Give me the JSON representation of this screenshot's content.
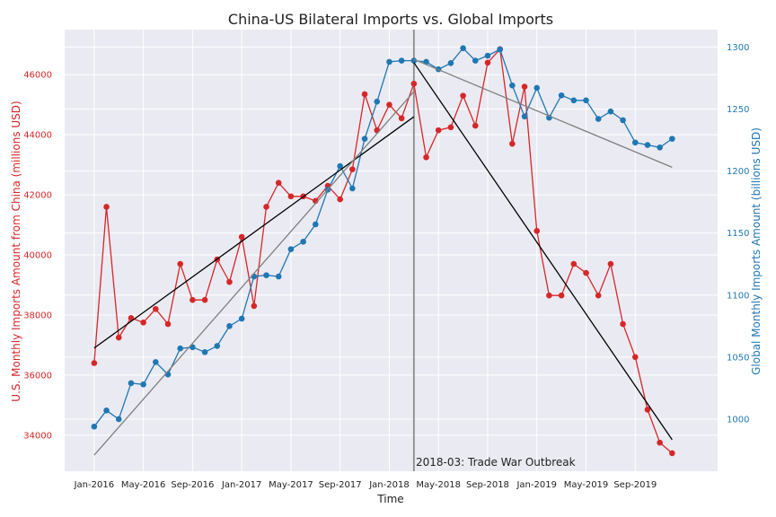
{
  "chart_data": {
    "type": "line",
    "title": "China-US Bilateral Imports vs. Global Imports",
    "xlabel": "Time",
    "ylabel_left": "U.S. Monthly Imports Amount from China (millions USD)",
    "ylabel_right": "Global Monthly Imports Amount (billions USD)",
    "x_ticks": [
      "Jan-2016",
      "May-2016",
      "Sep-2016",
      "Jan-2017",
      "May-2017",
      "Sep-2017",
      "Jan-2018",
      "May-2018",
      "Sep-2018",
      "Jan-2019",
      "May-2019",
      "Sep-2019"
    ],
    "x_tick_months": [
      0,
      4,
      8,
      12,
      16,
      20,
      24,
      28,
      32,
      36,
      40,
      44
    ],
    "x_range": [
      -2.4,
      50.7
    ],
    "ylim_left": [
      32800,
      47500
    ],
    "ylim_right": [
      958,
      1314
    ],
    "y_ticks_left": [
      34000,
      36000,
      38000,
      40000,
      42000,
      44000,
      46000
    ],
    "y_ticks_right": [
      1000,
      1050,
      1100,
      1150,
      1200,
      1250,
      1300
    ],
    "left_color": "#d62728",
    "right_color": "#1f77b4",
    "months": [
      0,
      1,
      2,
      3,
      4,
      5,
      6,
      7,
      8,
      9,
      10,
      11,
      12,
      13,
      14,
      15,
      16,
      17,
      18,
      19,
      20,
      21,
      22,
      23,
      24,
      25,
      26,
      27,
      28,
      29,
      30,
      31,
      32,
      33,
      34,
      35,
      36,
      37,
      38,
      39,
      40,
      41,
      42,
      43,
      44,
      45,
      46,
      47
    ],
    "series": [
      {
        "name": "",
        "axis": "left",
        "values": [
          36400,
          41600,
          37250,
          37900,
          37750,
          38200,
          37700,
          39700,
          38500,
          38500,
          39850,
          39100,
          40600,
          38300,
          41600,
          42400,
          41950,
          41950,
          41800,
          42300,
          41850,
          42850,
          45350,
          44150,
          45000,
          44550,
          45700,
          43250,
          44150,
          44250,
          45300,
          44300,
          46400,
          46850,
          43700,
          45600,
          40800,
          38650,
          38650,
          39700,
          39400,
          38650,
          39700,
          37700,
          36600,
          34850,
          33750,
          33400
        ]
      },
      {
        "name": "",
        "axis": "right",
        "values": [
          994,
          1007,
          1000,
          1029,
          1028,
          1046,
          1036,
          1057,
          1058,
          1054,
          1059,
          1075,
          1081,
          1115,
          1116,
          1115,
          1137,
          1143,
          1157,
          1185,
          1204,
          1186,
          1226,
          1256,
          1288,
          1289,
          1289,
          1288,
          1282,
          1287,
          1299,
          1289,
          1293,
          1298,
          1269,
          1244,
          1267,
          1243,
          1261,
          1257,
          1257,
          1242,
          1248,
          1241,
          1223,
          1221,
          1219,
          1226
        ]
      }
    ],
    "trend_lines": [
      {
        "axis": "left",
        "color": "#000000",
        "from": [
          0,
          36900
        ],
        "to": [
          26,
          44600
        ]
      },
      {
        "axis": "left",
        "color": "#000000",
        "from": [
          26,
          46400
        ],
        "to": [
          47,
          33850
        ]
      },
      {
        "axis": "right",
        "color": "#808080",
        "from": [
          0,
          971
        ],
        "to": [
          26,
          1264
        ]
      },
      {
        "axis": "right",
        "color": "#808080",
        "from": [
          26,
          1290
        ],
        "to": [
          47,
          1203
        ]
      }
    ],
    "vline": {
      "month": 26,
      "label": "2018-03: Trade War Outbreak"
    },
    "grid": true
  }
}
